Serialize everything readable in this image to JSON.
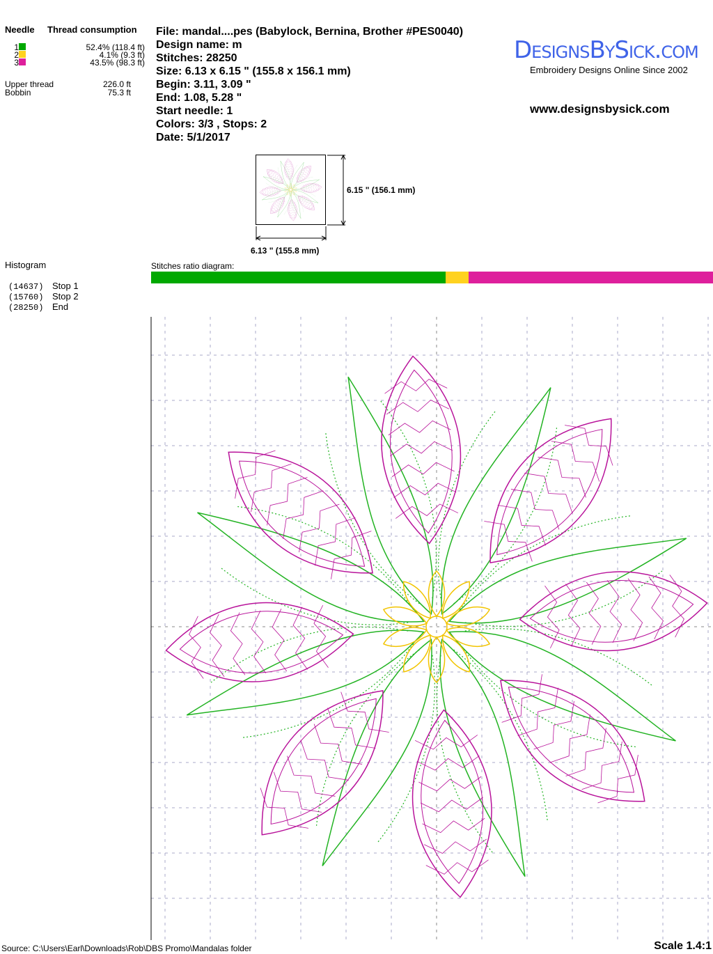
{
  "thread_table": {
    "needle_header": "Needle",
    "consumption_header": "Thread consumption",
    "needles": [
      {
        "num": "1",
        "color": "#00a800",
        "usage": "52.4% (118.4 ft)",
        "ratio": 52.4
      },
      {
        "num": "2",
        "color": "#ffd21f",
        "usage": "4.1% (9.3 ft)",
        "ratio": 4.1
      },
      {
        "num": "3",
        "color": "#de1f9c",
        "usage": "43.5% (98.3 ft)",
        "ratio": 43.5
      }
    ],
    "upper_label": "Upper thread",
    "upper_value": "226.0 ft",
    "bobbin_label": "Bobbin",
    "bobbin_value": "75.3 ft"
  },
  "info": {
    "file": "File: mandal....pes  (Babylock, Bernina, Brother #PES0040)",
    "design_name": "Design name: m",
    "stitches": "Stitches: 28250",
    "size": "Size: 6.13 x 6.15 \" (155.8 x 156.1 mm)",
    "begin": "Begin: 3.11, 3.09 \"",
    "end": "End: 1.08, 5.28 \"",
    "start_needle": "Start needle: 1",
    "colors": "Colors: 3/3 , Stops: 2",
    "date": "Date: 5/1/2017"
  },
  "logo": {
    "brand": "DesignsBySick.com",
    "tagline": "Embroidery Designs Online Since 2002",
    "url": "www.designsbysick.com",
    "color": "#3f63e8"
  },
  "thumbnail": {
    "height_label": "6.15 \" (156.1 mm)",
    "width_label": "6.13 \" (155.8 mm)"
  },
  "histogram": {
    "title": "Histogram",
    "stops": [
      {
        "count": "(14637)",
        "label": "Stop 1"
      },
      {
        "count": "(15760)",
        "label": "Stop 2"
      },
      {
        "count": "(28250)",
        "label": "End"
      }
    ]
  },
  "ratio_diagram": {
    "title": "Stitches ratio diagram:"
  },
  "footer": {
    "source": "Source: C:\\Users\\Earl\\Downloads\\Rob\\DBS Promo\\Mandalas folder",
    "scale": "Scale 1.4:1"
  }
}
